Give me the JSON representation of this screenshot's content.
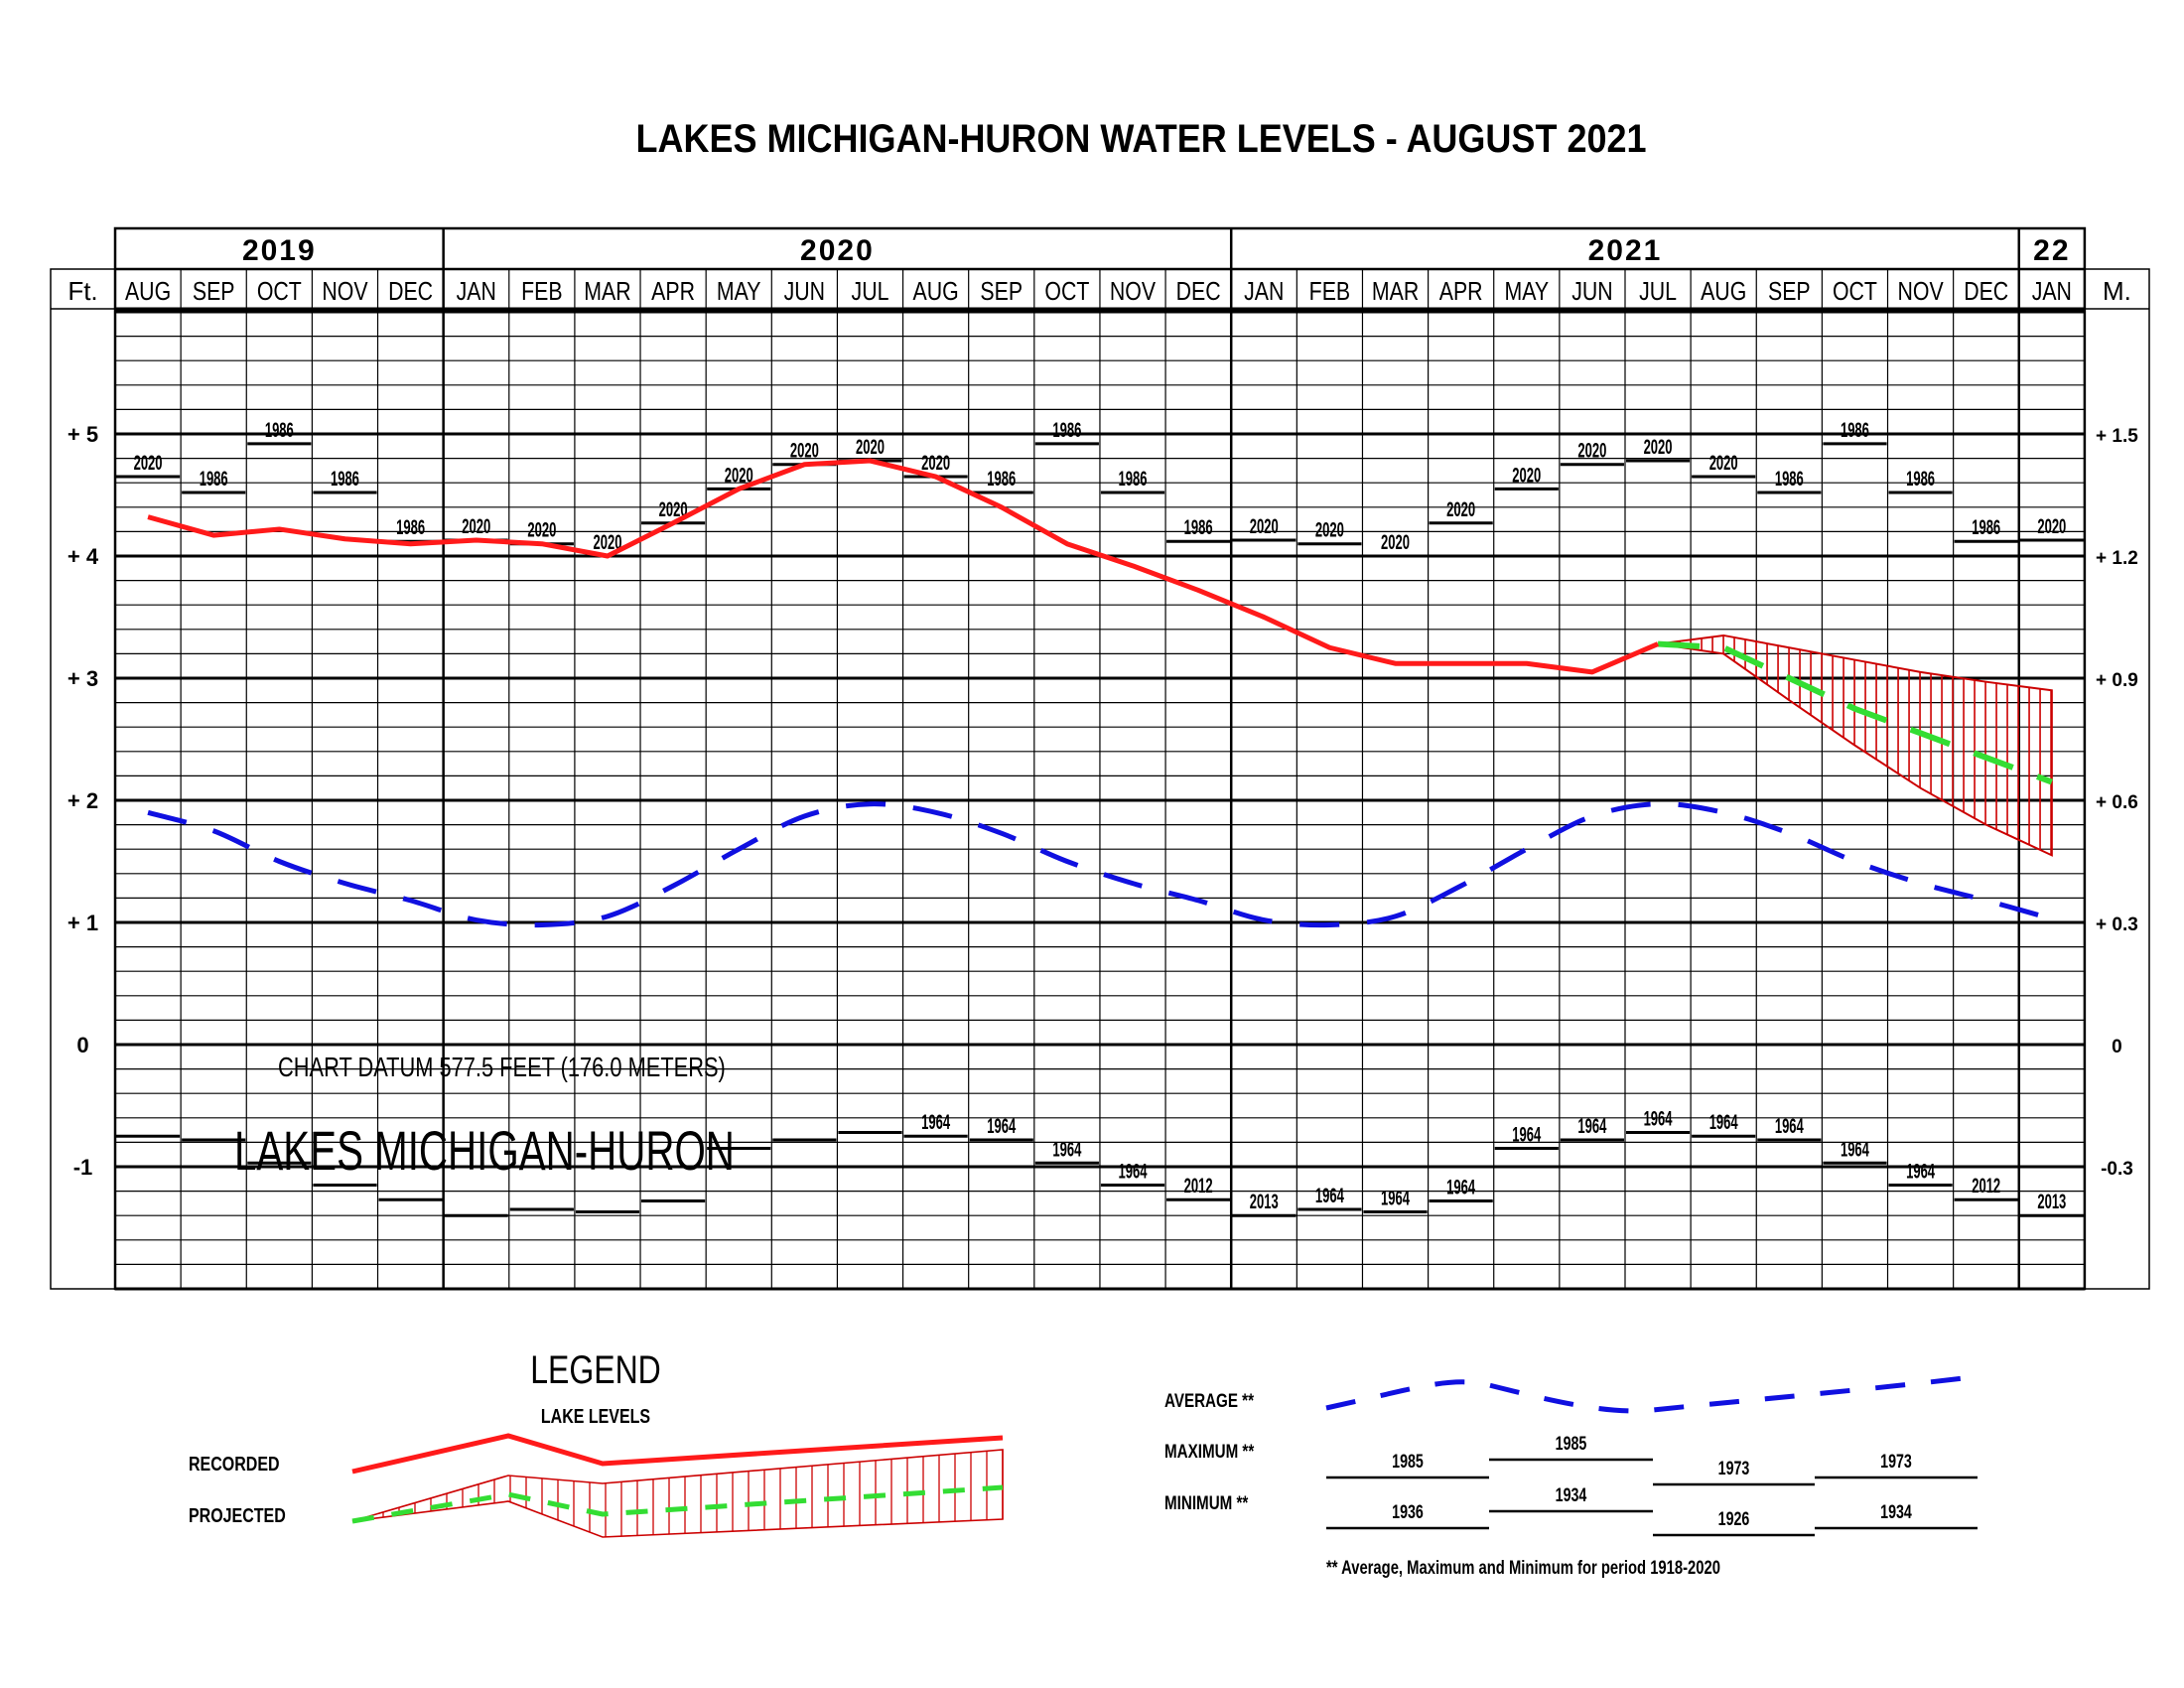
{
  "title": "LAKES MICHIGAN-HURON WATER LEVELS - AUGUST 2021",
  "axes": {
    "left_unit": "Ft.",
    "right_unit": "M.",
    "left_ticks": [
      "+ 5",
      "+ 4",
      "+ 3",
      "+ 2",
      "+ 1",
      "0",
      "-1"
    ],
    "right_ticks": [
      "+ 1.5",
      "+ 1.2",
      "+ 0.9",
      "+ 0.6",
      "+ 0.3",
      "0",
      "-0.3"
    ]
  },
  "years": [
    {
      "label": "2019",
      "months": 5
    },
    {
      "label": "2020",
      "months": 12
    },
    {
      "label": "2021",
      "months": 12
    },
    {
      "label": "22",
      "months": 1
    }
  ],
  "months": [
    "AUG",
    "SEP",
    "OCT",
    "NOV",
    "DEC",
    "JAN",
    "FEB",
    "MAR",
    "APR",
    "MAY",
    "JUN",
    "JUL",
    "AUG",
    "SEP",
    "OCT",
    "NOV",
    "DEC",
    "JAN",
    "FEB",
    "MAR",
    "APR",
    "MAY",
    "JUN",
    "JUL",
    "AUG",
    "SEP",
    "OCT",
    "NOV",
    "DEC",
    "JAN"
  ],
  "annotations": {
    "chart_datum": "CHART DATUM  577.5 FEET (176.0 METERS)",
    "lake_name": "LAKES MICHIGAN-HURON"
  },
  "legend": {
    "title": "LEGEND",
    "subtitle": "LAKE LEVELS",
    "recorded": "RECORDED",
    "projected": "PROJECTED",
    "average": "AVERAGE **",
    "maximum": "MAXIMUM **",
    "minimum": "MINIMUM **",
    "max_years": [
      "1985",
      "1985",
      "1973",
      "1973"
    ],
    "min_years": [
      "1936",
      "1934",
      "1926",
      "1934"
    ],
    "footnote": "** Average, Maximum and Minimum for period 1918-2020"
  },
  "colors": {
    "recorded": "#ff1a1a",
    "projected_band": "#cc0000",
    "projected_mid": "#33dd33",
    "average": "#1010e0",
    "grid": "#000000"
  },
  "chart_data": {
    "type": "line",
    "title": "LAKES MICHIGAN-HURON WATER LEVELS - AUGUST 2021",
    "xlabel": "",
    "ylabel": "Ft. (relative to chart datum 577.5 ft)",
    "ylim": [
      -2,
      6
    ],
    "y2label": "M.",
    "x": [
      "AUG 2019",
      "SEP 2019",
      "OCT 2019",
      "NOV 2019",
      "DEC 2019",
      "JAN 2020",
      "FEB 2020",
      "MAR 2020",
      "APR 2020",
      "MAY 2020",
      "JUN 2020",
      "JUL 2020",
      "AUG 2020",
      "SEP 2020",
      "OCT 2020",
      "NOV 2020",
      "DEC 2020",
      "JAN 2021",
      "FEB 2021",
      "MAR 2021",
      "APR 2021",
      "MAY 2021",
      "JUN 2021",
      "JUL 2021",
      "AUG 2021",
      "SEP 2021",
      "OCT 2021",
      "NOV 2021",
      "DEC 2021",
      "JAN 2022"
    ],
    "series": [
      {
        "name": "Recorded",
        "values": [
          4.32,
          4.17,
          4.22,
          4.14,
          4.1,
          4.13,
          4.1,
          4.0,
          4.27,
          4.55,
          4.75,
          4.78,
          4.65,
          4.4,
          4.1,
          3.92,
          3.72,
          3.5,
          3.25,
          3.12,
          3.12,
          3.12,
          3.05,
          3.28,
          null,
          null,
          null,
          null,
          null,
          null
        ]
      },
      {
        "name": "Projected (most probable)",
        "values": [
          null,
          null,
          null,
          null,
          null,
          null,
          null,
          null,
          null,
          null,
          null,
          null,
          null,
          null,
          null,
          null,
          null,
          null,
          null,
          null,
          null,
          null,
          null,
          3.28,
          3.25,
          3.0,
          2.75,
          2.55,
          2.35,
          2.15
        ]
      },
      {
        "name": "Projected upper",
        "values": [
          null,
          null,
          null,
          null,
          null,
          null,
          null,
          null,
          null,
          null,
          null,
          null,
          null,
          null,
          null,
          null,
          null,
          null,
          null,
          null,
          null,
          null,
          null,
          3.28,
          3.35,
          3.25,
          3.15,
          3.05,
          2.97,
          2.9
        ]
      },
      {
        "name": "Projected lower",
        "values": [
          null,
          null,
          null,
          null,
          null,
          null,
          null,
          null,
          null,
          null,
          null,
          null,
          null,
          null,
          null,
          null,
          null,
          null,
          null,
          null,
          null,
          null,
          null,
          3.28,
          3.2,
          2.82,
          2.45,
          2.1,
          1.8,
          1.55
        ]
      },
      {
        "name": "Average (1918-2020)",
        "values": [
          1.9,
          1.75,
          1.5,
          1.32,
          1.18,
          1.02,
          0.98,
          1.05,
          1.3,
          1.6,
          1.87,
          1.97,
          1.9,
          1.73,
          1.5,
          1.32,
          1.18,
          1.02,
          0.98,
          1.05,
          1.3,
          1.6,
          1.87,
          1.97,
          1.9,
          1.73,
          1.5,
          1.32,
          1.18,
          1.03
        ]
      },
      {
        "name": "Maximum (1918-2020)",
        "values": [
          4.65,
          4.52,
          4.92,
          4.52,
          4.12,
          4.13,
          4.1,
          4.0,
          4.27,
          4.55,
          4.75,
          4.78,
          4.65,
          4.52,
          4.92,
          4.52,
          4.12,
          4.13,
          4.1,
          4.0,
          4.27,
          4.55,
          4.75,
          4.78,
          4.65,
          4.52,
          4.92,
          4.52,
          4.12,
          4.13
        ],
        "years": [
          "2020",
          "1986",
          "1986",
          "1986",
          "1986",
          "2020",
          "2020",
          "2020",
          "2020",
          "2020",
          "2020",
          "2020",
          "2020",
          "1986",
          "1986",
          "1986",
          "1986",
          "2020",
          "2020",
          "2020",
          "2020",
          "2020",
          "2020",
          "2020",
          "2020",
          "1986",
          "1986",
          "1986",
          "1986",
          "2020"
        ]
      },
      {
        "name": "Minimum (1918-2020)",
        "values": [
          -0.75,
          -0.78,
          -0.97,
          -1.15,
          -1.27,
          -1.4,
          -1.35,
          -1.37,
          -1.28,
          -0.85,
          -0.78,
          -0.72,
          -0.75,
          -0.78,
          -0.97,
          -1.15,
          -1.27,
          -1.4,
          -1.35,
          -1.37,
          -1.28,
          -0.85,
          -0.78,
          -0.72,
          -0.75,
          -0.78,
          -0.97,
          -1.15,
          -1.27,
          -1.4
        ],
        "years": [
          "",
          "",
          "",
          "",
          "",
          "",
          "",
          "",
          "",
          "",
          "",
          "",
          "1964",
          "1964",
          "1964",
          "1964",
          "2012",
          "2013",
          "1964",
          "1964",
          "1964",
          "1964",
          "1964",
          "1964",
          "1964",
          "1964",
          "1964",
          "1964",
          "2012",
          "2013"
        ]
      }
    ],
    "legend": [
      "Recorded",
      "Projected",
      "Average **",
      "Maximum **",
      "Minimum **"
    ],
    "grid": true
  }
}
